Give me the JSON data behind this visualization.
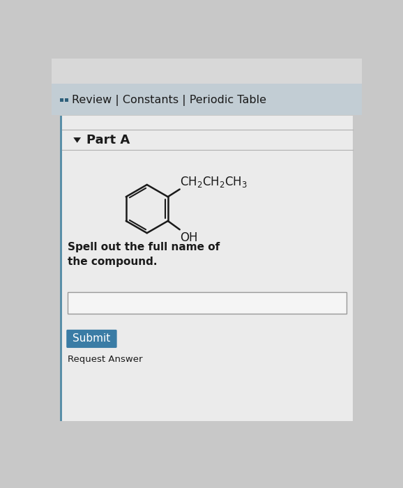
{
  "bg_color": "#c8c8c8",
  "header_bg": "#c2cdd4",
  "header_text": "Review | Constants | Periodic Table",
  "header_icon_color": "#2e5f7a",
  "header_fontsize": 11.5,
  "part_label": "Part A",
  "part_fontsize": 13,
  "instruction_text": "Spell out the full name of\nthe compound.",
  "instruction_fontsize": 11,
  "submit_label": "Submit",
  "submit_bg": "#3a7ca5",
  "submit_text_color": "#ffffff",
  "submit_fontsize": 11,
  "request_label": "Request Answer",
  "separator_color": "#b0b0b0",
  "text_color": "#1a1a1a",
  "content_bg": "#ebebeb",
  "white_bg": "#f0f0f0"
}
